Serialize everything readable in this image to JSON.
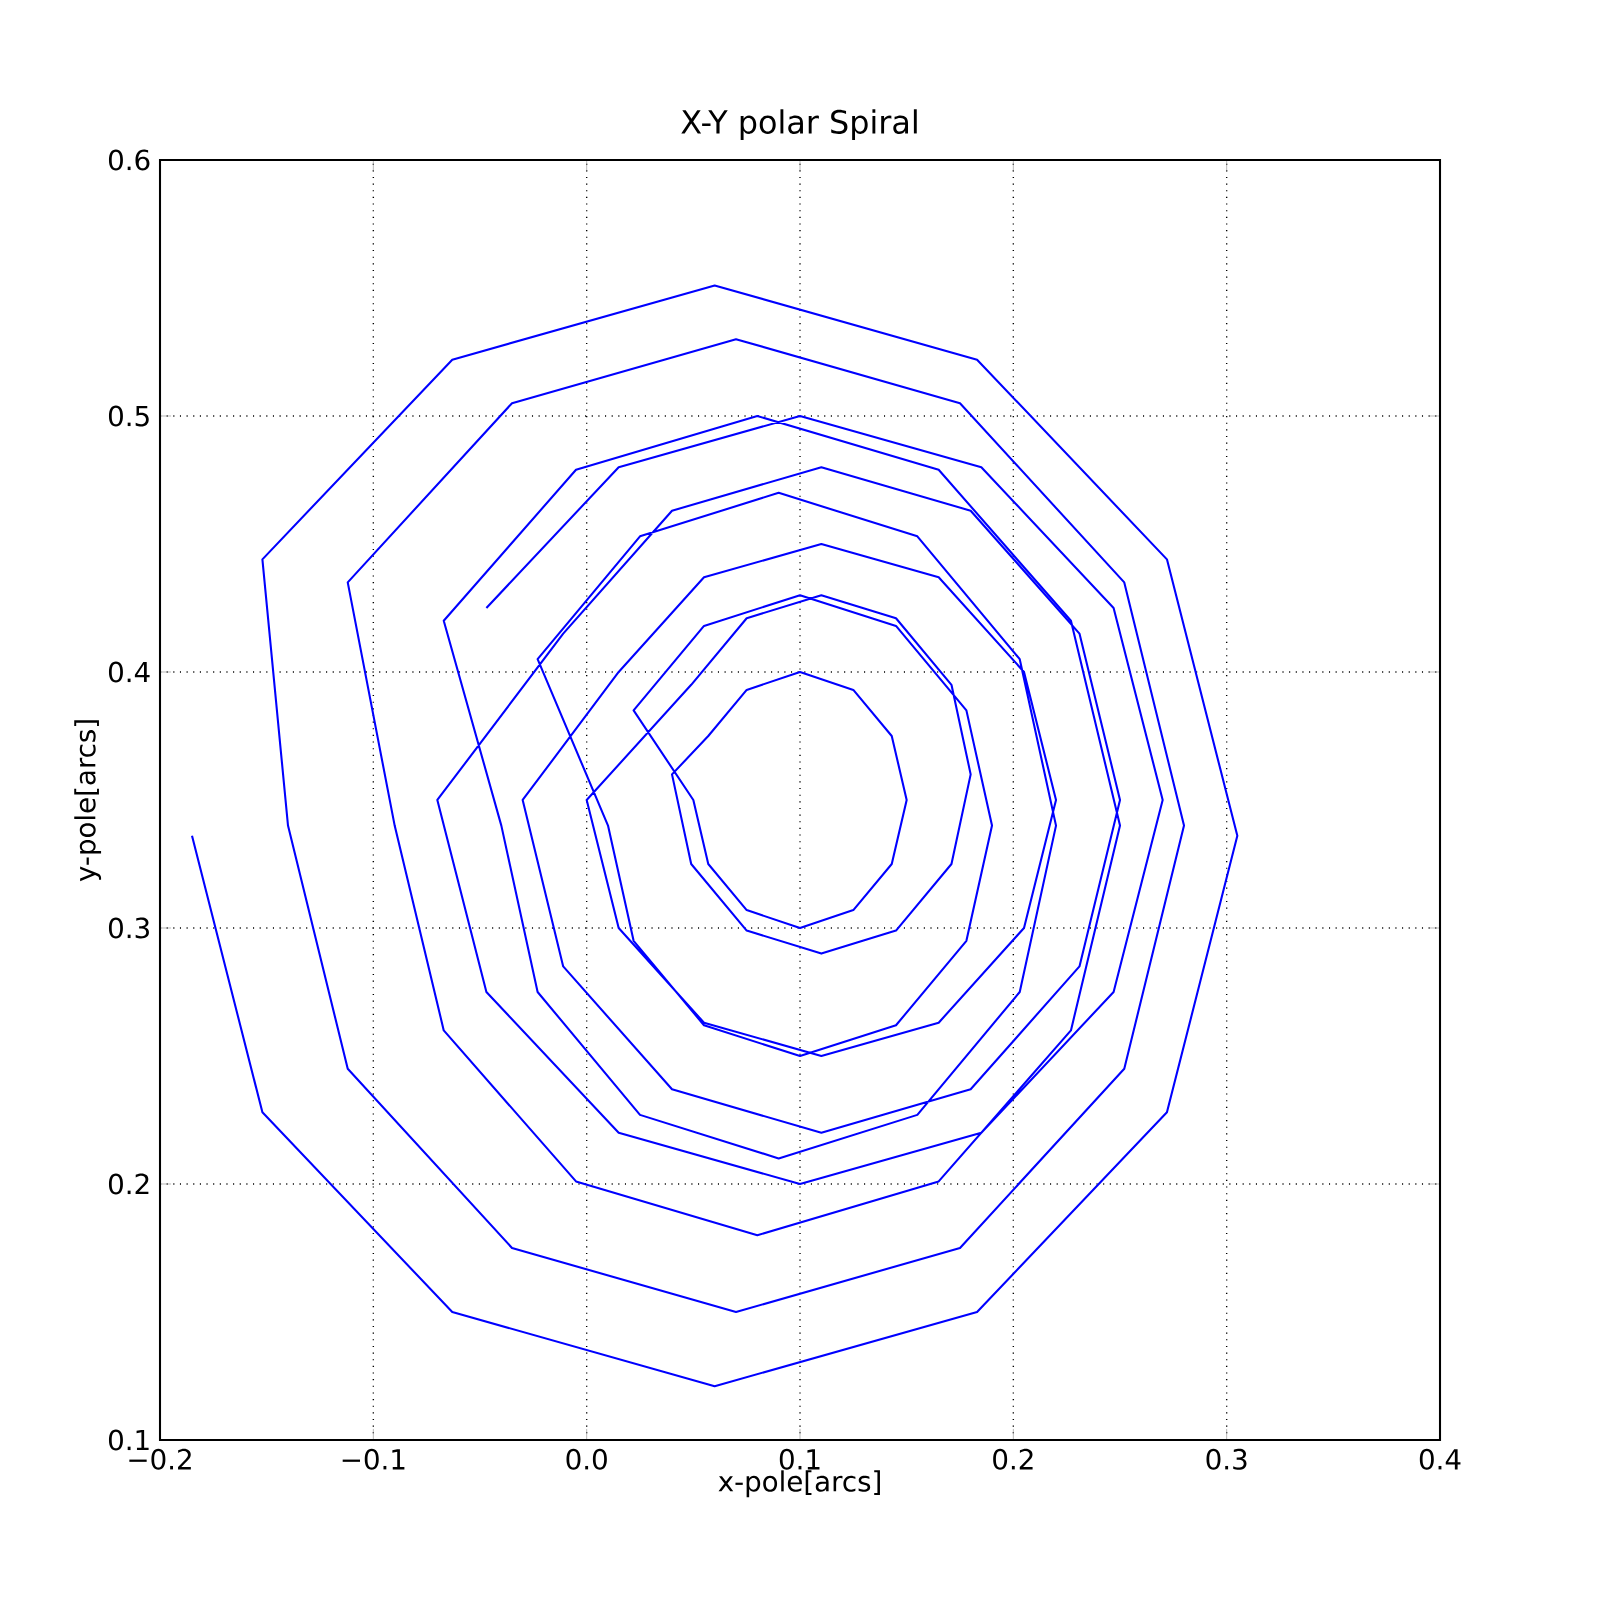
{
  "chart_data": {
    "type": "line",
    "title": "X-Y polar Spiral",
    "xlabel": "x-pole[arcs]",
    "ylabel": "y-pole[arcs]",
    "color": "#0000ff",
    "grid": true,
    "xlim": [
      -0.2,
      0.4
    ],
    "ylim": [
      0.1,
      0.6
    ],
    "xticks": [
      {
        "value": -0.2,
        "label": "−0.2"
      },
      {
        "value": -0.1,
        "label": "−0.1"
      },
      {
        "value": 0,
        "label": "0.0"
      },
      0.1,
      0.2,
      0.3,
      0.4
    ],
    "yticks": [
      0.1,
      0.2,
      0.3,
      0.4,
      0.5,
      0.6
    ],
    "x": [
      -0.047,
      0.015,
      0.1,
      0.185,
      0.247,
      0.27,
      0.247,
      0.185,
      0.1,
      0.015,
      -0.047,
      -0.07,
      -0.011,
      0.04,
      0.11,
      0.18,
      0.231,
      0.25,
      0.231,
      0.18,
      0.11,
      0.04,
      -0.011,
      -0.03,
      0.015,
      0.055,
      0.11,
      0.165,
      0.205,
      0.22,
      0.205,
      0.165,
      0.11,
      0.055,
      0.015,
      0,
      0.049,
      0.075,
      0.11,
      0.145,
      0.171,
      0.18,
      0.171,
      0.145,
      0.11,
      0.075,
      0.049,
      0.04,
      0.057,
      0.075,
      0.1,
      0.125,
      0.143,
      0.15,
      0.143,
      0.125,
      0.1,
      0.075,
      0.057,
      0.05,
      0.022,
      0.055,
      0.1,
      0.145,
      0.178,
      0.19,
      0.178,
      0.145,
      0.1,
      0.055,
      0.022,
      0.01,
      -0.023,
      0.025,
      0.09,
      0.155,
      0.203,
      0.22,
      0.203,
      0.155,
      0.09,
      0.025,
      -0.023,
      -0.04,
      -0.067,
      -0.005,
      0.08,
      0.165,
      0.227,
      0.25,
      0.227,
      0.165,
      0.08,
      -0.005,
      -0.067,
      -0.09,
      -0.112,
      -0.035,
      0.07,
      0.175,
      0.252,
      0.28,
      0.252,
      0.175,
      0.07,
      -0.035,
      -0.112,
      -0.14,
      -0.152,
      -0.063,
      0.06,
      0.183,
      0.272,
      0.305,
      0.272,
      0.183,
      0.06,
      -0.063,
      -0.152,
      -0.185
    ],
    "values": [
      0.425,
      0.48,
      0.5,
      0.48,
      0.425,
      0.35,
      0.275,
      0.22,
      0.2,
      0.22,
      0.275,
      0.35,
      0.415,
      0.463,
      0.48,
      0.463,
      0.415,
      0.35,
      0.285,
      0.237,
      0.22,
      0.237,
      0.285,
      0.35,
      0.4,
      0.437,
      0.45,
      0.437,
      0.4,
      0.35,
      0.3,
      0.263,
      0.25,
      0.263,
      0.3,
      0.35,
      0.395,
      0.421,
      0.43,
      0.421,
      0.395,
      0.36,
      0.325,
      0.299,
      0.29,
      0.299,
      0.325,
      0.36,
      0.375,
      0.393,
      0.4,
      0.393,
      0.375,
      0.35,
      0.325,
      0.307,
      0.3,
      0.307,
      0.325,
      0.35,
      0.385,
      0.418,
      0.43,
      0.418,
      0.385,
      0.34,
      0.295,
      0.262,
      0.25,
      0.262,
      0.295,
      0.34,
      0.405,
      0.453,
      0.47,
      0.453,
      0.405,
      0.34,
      0.275,
      0.227,
      0.21,
      0.227,
      0.275,
      0.34,
      0.42,
      0.479,
      0.5,
      0.479,
      0.42,
      0.34,
      0.26,
      0.201,
      0.18,
      0.201,
      0.26,
      0.34,
      0.435,
      0.505,
      0.53,
      0.505,
      0.435,
      0.34,
      0.245,
      0.175,
      0.15,
      0.175,
      0.245,
      0.34,
      0.444,
      0.522,
      0.551,
      0.522,
      0.444,
      0.336,
      0.228,
      0.15,
      0.121,
      0.15,
      0.228,
      0.336
    ]
  }
}
